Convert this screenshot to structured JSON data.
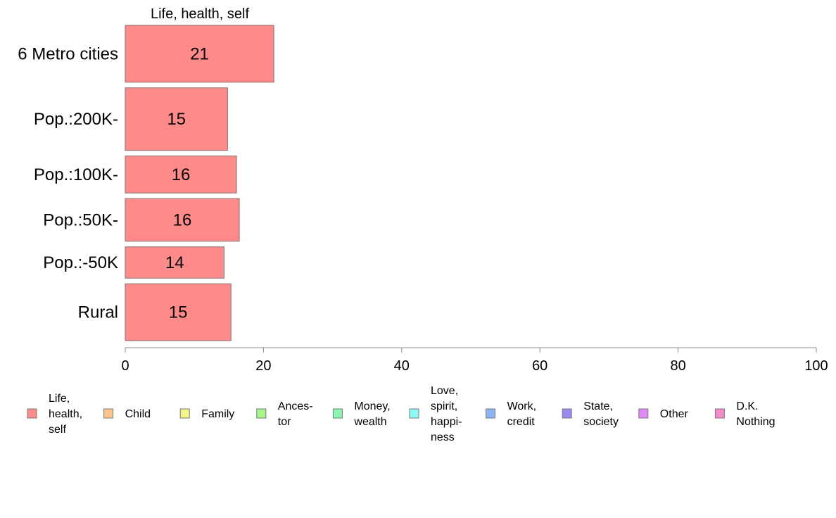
{
  "chart_data": {
    "type": "bar",
    "orientation": "horizontal",
    "column_title": "Life, health, self",
    "categories": [
      "6 Metro cities",
      "Pop.:200K-",
      "Pop.:100K-",
      "Pop.:50K-",
      "Pop.:-50K",
      "Rural"
    ],
    "series": [
      {
        "name": "Life, health, self",
        "values": [
          21.5,
          14.8,
          16.1,
          16.5,
          14.3,
          15.3
        ],
        "labels": [
          "21",
          "15",
          "16",
          "16",
          "14",
          "15"
        ]
      }
    ],
    "row_weights": [
      1.0,
      1.1,
      0.65,
      0.75,
      0.55,
      1.0
    ],
    "xlim": [
      0,
      100
    ],
    "xticks": [
      "0",
      "20",
      "40",
      "60",
      "80",
      "100"
    ],
    "xlabel": "",
    "ylabel": "",
    "grid": false,
    "legend_position": "bottom",
    "legend": [
      {
        "label_lines": [
          "Life,",
          "health,",
          "self"
        ],
        "color": "#ff8a8a"
      },
      {
        "label_lines": [
          "Child"
        ],
        "color": "#ffc48a"
      },
      {
        "label_lines": [
          "Family"
        ],
        "color": "#f2f58a"
      },
      {
        "label_lines": [
          "Ances-",
          "tor"
        ],
        "color": "#a8f58a"
      },
      {
        "label_lines": [
          "Money,",
          "wealth"
        ],
        "color": "#8af5b4"
      },
      {
        "label_lines": [
          "Love,",
          "spirit,",
          "happi-",
          "ness"
        ],
        "color": "#8afaf8"
      },
      {
        "label_lines": [
          "Work,",
          "credit"
        ],
        "color": "#8ab4f5"
      },
      {
        "label_lines": [
          "State,",
          "society"
        ],
        "color": "#9a8af5"
      },
      {
        "label_lines": [
          "Other"
        ],
        "color": "#e08af5"
      },
      {
        "label_lines": [
          "D.K.",
          "Nothing"
        ],
        "color": "#f58ac8"
      }
    ],
    "bar_color": "#ff8a8a",
    "bar_edge_color": "#8c6e6e",
    "axis_color": "#8c8c8c"
  }
}
